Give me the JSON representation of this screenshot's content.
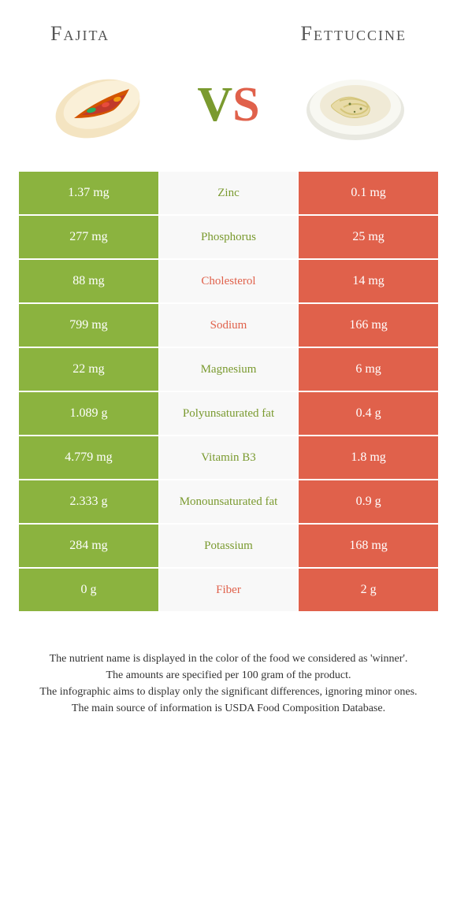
{
  "header": {
    "left_title": "Fajita",
    "right_title": "Fettuccine"
  },
  "vs": {
    "v": "V",
    "s": "S"
  },
  "colors": {
    "green": "#8bb33f",
    "orange": "#e0614b",
    "mid_bg": "#f8f8f8",
    "text_green": "#7a9a2f",
    "text_orange": "#e0614b"
  },
  "rows": [
    {
      "left": "1.37 mg",
      "label": "Zinc",
      "right": "0.1 mg",
      "left_bg": "green",
      "right_bg": "orange",
      "label_color": "green"
    },
    {
      "left": "277 mg",
      "label": "Phosphorus",
      "right": "25 mg",
      "left_bg": "green",
      "right_bg": "orange",
      "label_color": "green"
    },
    {
      "left": "88 mg",
      "label": "Cholesterol",
      "right": "14 mg",
      "left_bg": "green",
      "right_bg": "orange",
      "label_color": "orange"
    },
    {
      "left": "799 mg",
      "label": "Sodium",
      "right": "166 mg",
      "left_bg": "green",
      "right_bg": "orange",
      "label_color": "orange"
    },
    {
      "left": "22 mg",
      "label": "Magnesium",
      "right": "6 mg",
      "left_bg": "green",
      "right_bg": "orange",
      "label_color": "green"
    },
    {
      "left": "1.089 g",
      "label": "Polyunsaturated fat",
      "right": "0.4 g",
      "left_bg": "green",
      "right_bg": "orange",
      "label_color": "green"
    },
    {
      "left": "4.779 mg",
      "label": "Vitamin B3",
      "right": "1.8 mg",
      "left_bg": "green",
      "right_bg": "orange",
      "label_color": "green"
    },
    {
      "left": "2.333 g",
      "label": "Monounsaturated fat",
      "right": "0.9 g",
      "left_bg": "green",
      "right_bg": "orange",
      "label_color": "green"
    },
    {
      "left": "284 mg",
      "label": "Potassium",
      "right": "168 mg",
      "left_bg": "green",
      "right_bg": "orange",
      "label_color": "green"
    },
    {
      "left": "0 g",
      "label": "Fiber",
      "right": "2 g",
      "left_bg": "green",
      "right_bg": "orange",
      "label_color": "orange"
    }
  ],
  "footnotes": [
    "The nutrient name is displayed in the color of the food we considered as 'winner'.",
    "The amounts are specified per 100 gram of the product.",
    "The infographic aims to display only the significant differences, ignoring minor ones.",
    "The main source of information is USDA Food Composition Database."
  ]
}
